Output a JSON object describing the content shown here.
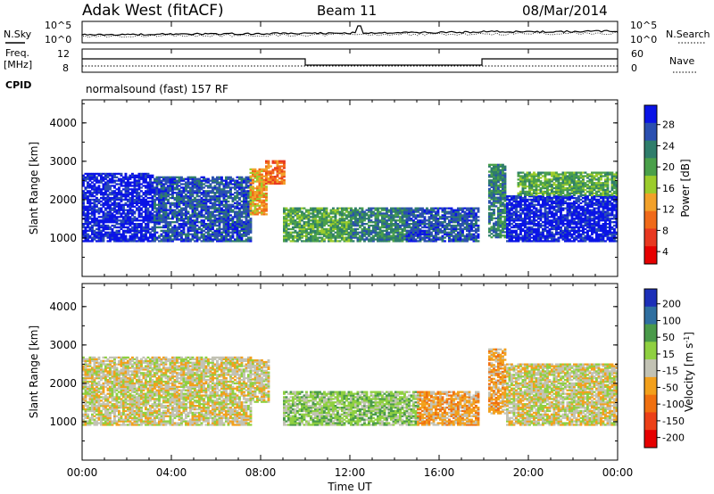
{
  "header": {
    "title": "Adak West (fitACF)",
    "beam": "Beam 11",
    "date": "08/Mar/2014"
  },
  "noise_panel": {
    "left_label": "N.Sky",
    "right_label": "N.Search",
    "left_ticks": [
      "10^5",
      "10^0"
    ],
    "right_ticks": [
      "10^5",
      "10^0"
    ]
  },
  "freq_panel": {
    "left_label": "Freq.",
    "left_unit": "[MHz]",
    "left_ticks": [
      "12",
      "8"
    ],
    "right_label": "Nave",
    "right_ticks": [
      "60",
      "0"
    ],
    "cpid_label": "CPID",
    "cpid_text": "normalsound (fast) 157 RF"
  },
  "x_axis": {
    "label": "Time UT",
    "ticks": [
      "00:00",
      "04:00",
      "08:00",
      "12:00",
      "16:00",
      "20:00",
      "00:00"
    ]
  },
  "colors": {
    "power": [
      "#0a14e6",
      "#2a4fb0",
      "#2f7d6b",
      "#4aa04a",
      "#9ccc2c",
      "#f2a12a",
      "#f06a1a",
      "#e83820",
      "#e60000"
    ],
    "velocity": [
      "#1c2fb8",
      "#2f6fa0",
      "#4a9a4a",
      "#8fd040",
      "#c2c2b4",
      "#f2a01c",
      "#f07010",
      "#ec4018",
      "#e60000"
    ]
  },
  "chart_data": [
    {
      "type": "heatmap",
      "name": "power",
      "ylabel": "Slant Range [km]",
      "yticks": [
        "4000",
        "3000",
        "2000",
        "1000"
      ],
      "ylim": [
        0,
        4600
      ],
      "xlim_hours": [
        0,
        24
      ],
      "colorbar": {
        "label": "Power [dB]",
        "ticks": [
          "28",
          "24",
          "20",
          "16",
          "12",
          "8",
          "4"
        ]
      },
      "regions": [
        {
          "t0": 0.0,
          "t1": 3.2,
          "r0": 900,
          "r1": 2700,
          "level": 8
        },
        {
          "t0": 3.2,
          "t1": 7.5,
          "r0": 900,
          "r1": 2600,
          "level": 7
        },
        {
          "t0": 7.5,
          "t1": 8.2,
          "r0": 1600,
          "r1": 2800,
          "level": 3
        },
        {
          "t0": 8.2,
          "t1": 9.0,
          "r0": 2400,
          "r1": 3000,
          "level": 2
        },
        {
          "t0": 9.0,
          "t1": 12.0,
          "r0": 900,
          "r1": 1800,
          "level": 5
        },
        {
          "t0": 12.0,
          "t1": 14.5,
          "r0": 900,
          "r1": 1800,
          "level": 6
        },
        {
          "t0": 14.5,
          "t1": 17.8,
          "r0": 900,
          "r1": 1800,
          "level": 7
        },
        {
          "t0": 18.2,
          "t1": 19.0,
          "r0": 1000,
          "r1": 2900,
          "level": 6
        },
        {
          "t0": 19.0,
          "t1": 24.0,
          "r0": 900,
          "r1": 2100,
          "level": 8
        },
        {
          "t0": 19.5,
          "t1": 24.0,
          "r0": 2100,
          "r1": 2700,
          "level": 5
        }
      ]
    },
    {
      "type": "heatmap",
      "name": "velocity",
      "ylabel": "Slant Range [km]",
      "yticks": [
        "4000",
        "3000",
        "2000",
        "1000"
      ],
      "ylim": [
        0,
        4600
      ],
      "xlim_hours": [
        0,
        24
      ],
      "colorbar": {
        "label": "Velocity [m s^-1]",
        "ticks": [
          "200",
          "100",
          "50",
          "15",
          "-15",
          "-50",
          "-100",
          "-150",
          "-200"
        ]
      },
      "regions": [
        {
          "t0": 0.0,
          "t1": 7.5,
          "r0": 900,
          "r1": 2700,
          "level": 4
        },
        {
          "t0": 7.5,
          "t1": 8.3,
          "r0": 1500,
          "r1": 2600,
          "level": 4
        },
        {
          "t0": 9.0,
          "t1": 12.0,
          "r0": 900,
          "r1": 1800,
          "level": 5
        },
        {
          "t0": 12.0,
          "t1": 15.0,
          "r0": 900,
          "r1": 1800,
          "level": 5
        },
        {
          "t0": 15.0,
          "t1": 17.8,
          "r0": 900,
          "r1": 1800,
          "level": 3
        },
        {
          "t0": 18.2,
          "t1": 19.0,
          "r0": 1200,
          "r1": 2900,
          "level": 3
        },
        {
          "t0": 19.0,
          "t1": 24.0,
          "r0": 900,
          "r1": 2500,
          "level": 4
        }
      ]
    }
  ]
}
